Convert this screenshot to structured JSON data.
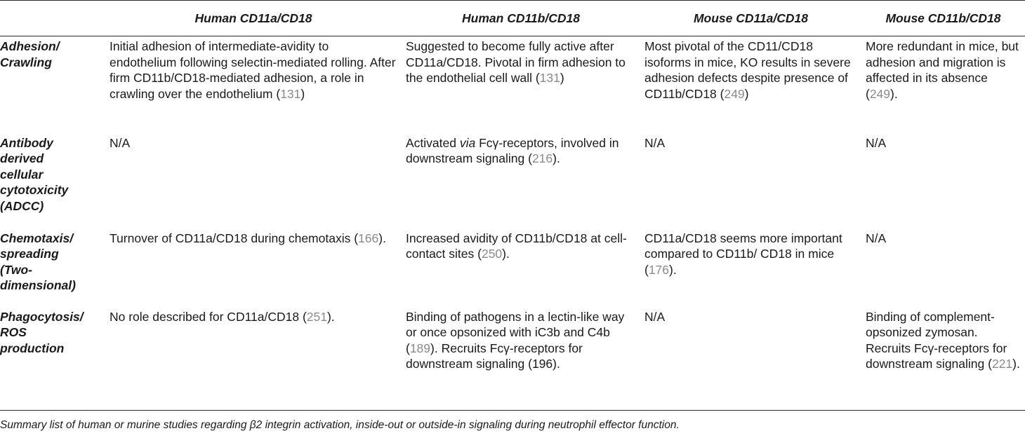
{
  "columns": [
    "",
    "Human CD11a/CD18",
    "Human CD11b/CD18",
    "Mouse CD11a/CD18",
    "Mouse CD11b/CD18"
  ],
  "rows": [
    {
      "label": [
        "Adhesion/",
        "Crawling"
      ],
      "cells": [
        {
          "text": "Initial adhesion of intermediate-avidity to endothelium following selectin-mediated rolling. After firm CD11b/CD18-mediated adhesion, a role in crawling over the endothelium (",
          "ref": "131",
          "after": ")"
        },
        {
          "text": "Suggested to become fully active after CD11a/CD18. Pivotal in firm adhesion to the endothelial cell wall (",
          "ref": "131",
          "after": ")"
        },
        {
          "text": "Most pivotal of the CD11/CD18 isoforms in mice, KO results in severe adhesion defects despite presence of CD11b/CD18 (",
          "ref": "249",
          "after": ")"
        },
        {
          "text": "More redundant in mice, but adhesion and migration is affected in its absence (",
          "ref": "249",
          "after": ")."
        }
      ]
    },
    {
      "label": [
        "Antibody",
        "derived",
        "cellular",
        "cytotoxicity",
        "(ADCC)"
      ],
      "cells": [
        {
          "text": "N/A",
          "ref": "",
          "after": ""
        },
        {
          "pre": "Activated ",
          "italic": "via",
          "text": " Fcγ-receptors, involved in downstream signaling (",
          "ref": "216",
          "after": ")."
        },
        {
          "text": "N/A",
          "ref": "",
          "after": ""
        },
        {
          "text": "N/A",
          "ref": "",
          "after": ""
        }
      ]
    },
    {
      "label": [
        "Chemotaxis/",
        "spreading",
        "(Two-",
        "dimensional)"
      ],
      "cells": [
        {
          "text": "Turnover of CD11a/CD18 during chemotaxis (",
          "ref": "166",
          "after": ")."
        },
        {
          "text": "Increased avidity of CD11b/CD18 at cell-contact sites (",
          "ref": "250",
          "after": ")."
        },
        {
          "text": "CD11a/CD18 seems more important compared to CD11b/ CD18 in mice (",
          "ref": "176",
          "after": ")."
        },
        {
          "text": "N/A",
          "ref": "",
          "after": ""
        }
      ]
    },
    {
      "label": [
        "Phagocytosis/",
        "ROS",
        "production"
      ],
      "cells": [
        {
          "text": "No role described for CD11a/CD18 (",
          "ref": "251",
          "after": ")."
        },
        {
          "text": "Binding of pathogens in a lectin-like way or once opsonized with iC3b and C4b (",
          "ref": "189",
          "after": "). Recruits Fcγ-receptors for downstream signaling (196)."
        },
        {
          "text": "N/A",
          "ref": "",
          "after": ""
        },
        {
          "text": "Binding of complement-opsonized zymosan. Recruits Fcγ-receptors for downstream signaling (",
          "ref": "221",
          "after": ")."
        }
      ]
    }
  ],
  "caption": "Summary list of human or murine studies regarding β2 integrin activation, inside-out or outside-in signaling during neutrophil effector function."
}
